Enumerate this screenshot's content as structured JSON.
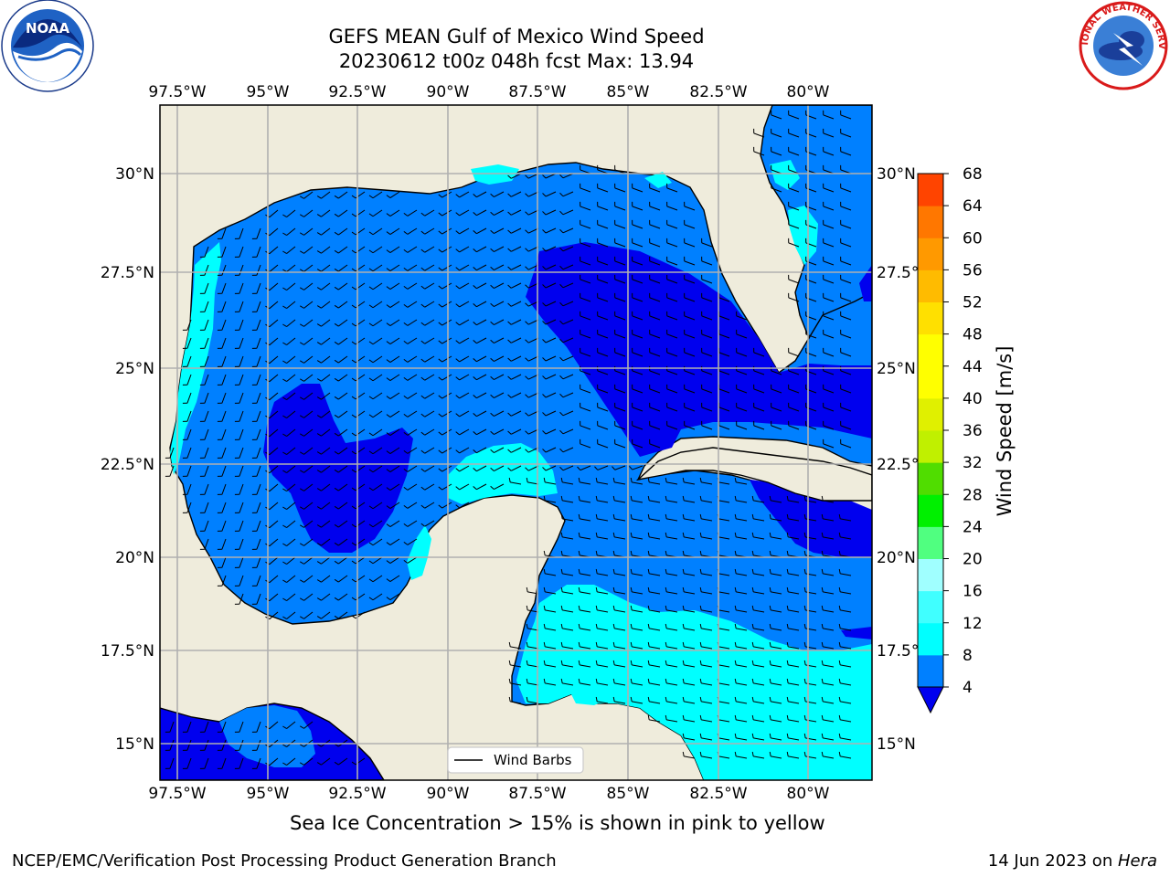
{
  "title": {
    "line1": "GEFS MEAN Gulf of Mexico Wind Speed",
    "line2": "20230612 t00z 048h fcst   Max: 13.94"
  },
  "logos": {
    "left": {
      "icon": "noaa-logo",
      "text": "NOAA"
    },
    "right": {
      "icon": "nws-logo",
      "text": "NATIONAL WEATHER SERVICE"
    }
  },
  "map": {
    "lon_labels": [
      "97.5°W",
      "95°W",
      "92.5°W",
      "90°W",
      "87.5°W",
      "85°W",
      "82.5°W",
      "80°W"
    ],
    "lat_labels": [
      "30°N",
      "27.5°N",
      "25°N",
      "22.5°N",
      "20°N",
      "17.5°N",
      "15°N"
    ],
    "legend_label": "Wind Barbs",
    "colors": {
      "land": "#efecdc",
      "ws_4_8": "#0080ff",
      "ws_8_12": "#00ffff",
      "ws_below_4": "#0000ee"
    }
  },
  "colorbar": {
    "label": "Wind Speed [m/s]",
    "ticks": [
      "4",
      "8",
      "12",
      "16",
      "20",
      "24",
      "28",
      "32",
      "36",
      "40",
      "44",
      "48",
      "52",
      "56",
      "60",
      "64",
      "68"
    ],
    "colors": [
      "#0080ff",
      "#00ffff",
      "#40ffff",
      "#a0ffff",
      "#50ff80",
      "#00f000",
      "#50dd00",
      "#c0f000",
      "#e0f000",
      "#ffff00",
      "#ffff00",
      "#ffe000",
      "#ffbb00",
      "#ff9900",
      "#ff7700",
      "#ff4400",
      "#ff0000"
    ],
    "under_color": "#0000ee"
  },
  "caption": "Sea Ice Concentration > 15% is shown in pink to yellow",
  "footer": {
    "left": "NCEP/EMC/Verification Post Processing Product Generation Branch",
    "date": "14 Jun 2023 on ",
    "machine": "Hera"
  }
}
